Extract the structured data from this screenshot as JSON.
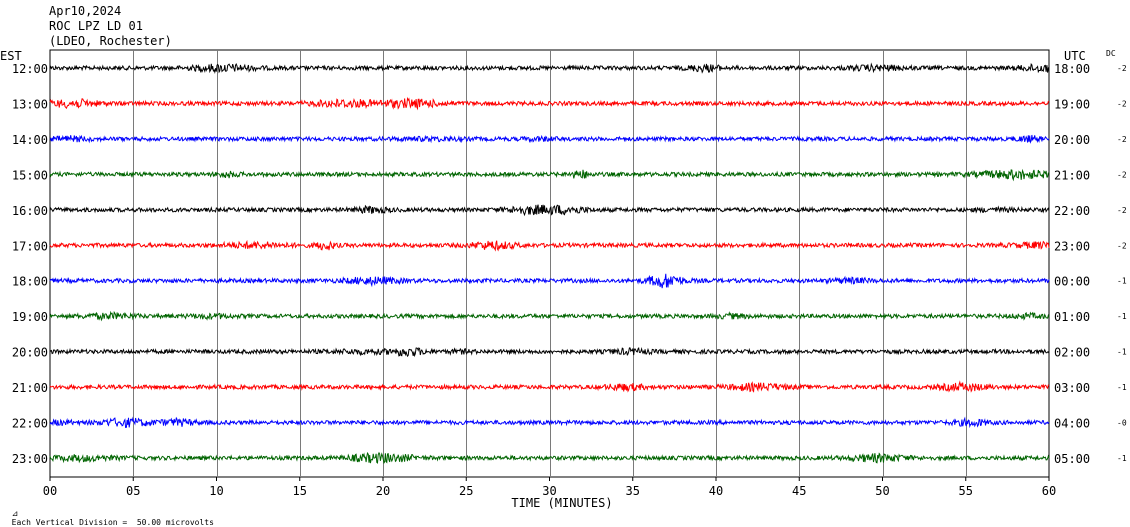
{
  "header": {
    "date": "Apr10,2024",
    "station": "ROC LPZ LD 01",
    "network": "(LDEO, Rochester)"
  },
  "left_zone_label": "EST",
  "right_zone_label": "UTC",
  "dc_label": "DC",
  "footer": {
    "scale_note": "Each Vertical Division =  50.00 microvolts"
  },
  "chart_data": {
    "type": "line",
    "title": "ROC LPZ LD 01",
    "xlabel": "TIME (MINUTES)",
    "ylabel": "",
    "xlim": [
      0,
      60
    ],
    "x_ticks": [
      "00",
      "05",
      "10",
      "15",
      "20",
      "25",
      "30",
      "35",
      "40",
      "45",
      "50",
      "55",
      "60"
    ],
    "grid": true,
    "trace_colors": [
      "#000000",
      "#ff0000",
      "#0000ff",
      "#006400"
    ],
    "rows": [
      {
        "est": "12:00",
        "utc": "18:00",
        "dc": "-2",
        "color": "#000000"
      },
      {
        "est": "13:00",
        "utc": "19:00",
        "dc": "-2",
        "color": "#ff0000"
      },
      {
        "est": "14:00",
        "utc": "20:00",
        "dc": "-2",
        "color": "#0000ff"
      },
      {
        "est": "15:00",
        "utc": "21:00",
        "dc": "-2",
        "color": "#006400"
      },
      {
        "est": "16:00",
        "utc": "22:00",
        "dc": "-2",
        "color": "#000000"
      },
      {
        "est": "17:00",
        "utc": "23:00",
        "dc": "-2",
        "color": "#ff0000"
      },
      {
        "est": "18:00",
        "utc": "00:00",
        "dc": "-1",
        "color": "#0000ff"
      },
      {
        "est": "19:00",
        "utc": "01:00",
        "dc": "-1",
        "color": "#006400"
      },
      {
        "est": "20:00",
        "utc": "02:00",
        "dc": "-1",
        "color": "#000000"
      },
      {
        "est": "21:00",
        "utc": "03:00",
        "dc": "-1",
        "color": "#ff0000"
      },
      {
        "est": "22:00",
        "utc": "04:00",
        "dc": "-0",
        "color": "#0000ff"
      },
      {
        "est": "23:00",
        "utc": "05:00",
        "dc": "-1",
        "color": "#006400"
      }
    ]
  }
}
